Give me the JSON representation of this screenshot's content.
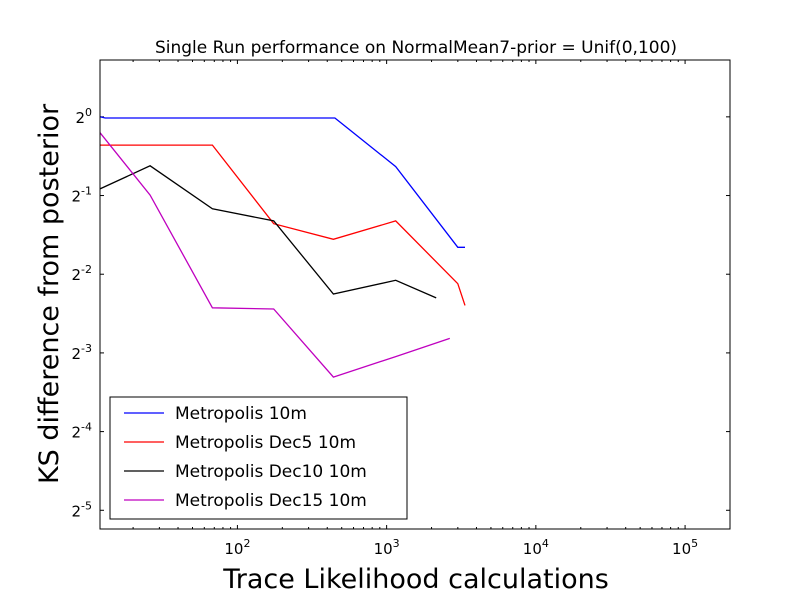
{
  "chart_data": {
    "type": "line",
    "title": "Single Run performance on NormalMean7-prior = Unif(0,100)",
    "xlabel": "Trace Likelihood calculations",
    "ylabel": "KS difference from posterior",
    "x_scale": "log10",
    "y_scale": "log2",
    "xlim": [
      12,
      200000
    ],
    "ylim": [
      0.0265,
      1.65
    ],
    "x_ticks": [
      {
        "value": 100,
        "base": "10",
        "exp": "2"
      },
      {
        "value": 1000,
        "base": "10",
        "exp": "3"
      },
      {
        "value": 10000,
        "base": "10",
        "exp": "4"
      },
      {
        "value": 100000,
        "base": "10",
        "exp": "5"
      }
    ],
    "y_ticks": [
      {
        "value": 1,
        "base": "2",
        "exp": "0"
      },
      {
        "value": 0.5,
        "base": "2",
        "exp": "-1"
      },
      {
        "value": 0.25,
        "base": "2",
        "exp": "-2"
      },
      {
        "value": 0.125,
        "base": "2",
        "exp": "-3"
      },
      {
        "value": 0.0625,
        "base": "2",
        "exp": "-4"
      },
      {
        "value": 0.03125,
        "base": "2",
        "exp": "-5"
      }
    ],
    "grid": false,
    "legend_position": "lower-left",
    "series": [
      {
        "name": "Metropolis 10m",
        "color": "#0000ff",
        "x": [
          12,
          13,
          450,
          1150,
          3000,
          3350
        ],
        "y": [
          1.0,
          0.99,
          0.99,
          0.645,
          0.317,
          0.317
        ]
      },
      {
        "name": "Metropolis Dec5 10m",
        "color": "#ff0000",
        "x": [
          12,
          68,
          175,
          440,
          1150,
          3000,
          3350
        ],
        "y": [
          0.78,
          0.78,
          0.39,
          0.34,
          0.4,
          0.23,
          0.19
        ]
      },
      {
        "name": "Metropolis Dec10 10m",
        "color": "#000000",
        "x": [
          12,
          26,
          68,
          175,
          440,
          1150,
          2150
        ],
        "y": [
          0.53,
          0.65,
          0.445,
          0.4,
          0.21,
          0.237,
          0.203
        ]
      },
      {
        "name": "Metropolis Dec15 10m",
        "color": "#bf00bf",
        "x": [
          12,
          26,
          68,
          175,
          440,
          1150,
          2650
        ],
        "y": [
          0.87,
          0.502,
          0.186,
          0.184,
          0.101,
          0.121,
          0.142
        ]
      }
    ]
  }
}
